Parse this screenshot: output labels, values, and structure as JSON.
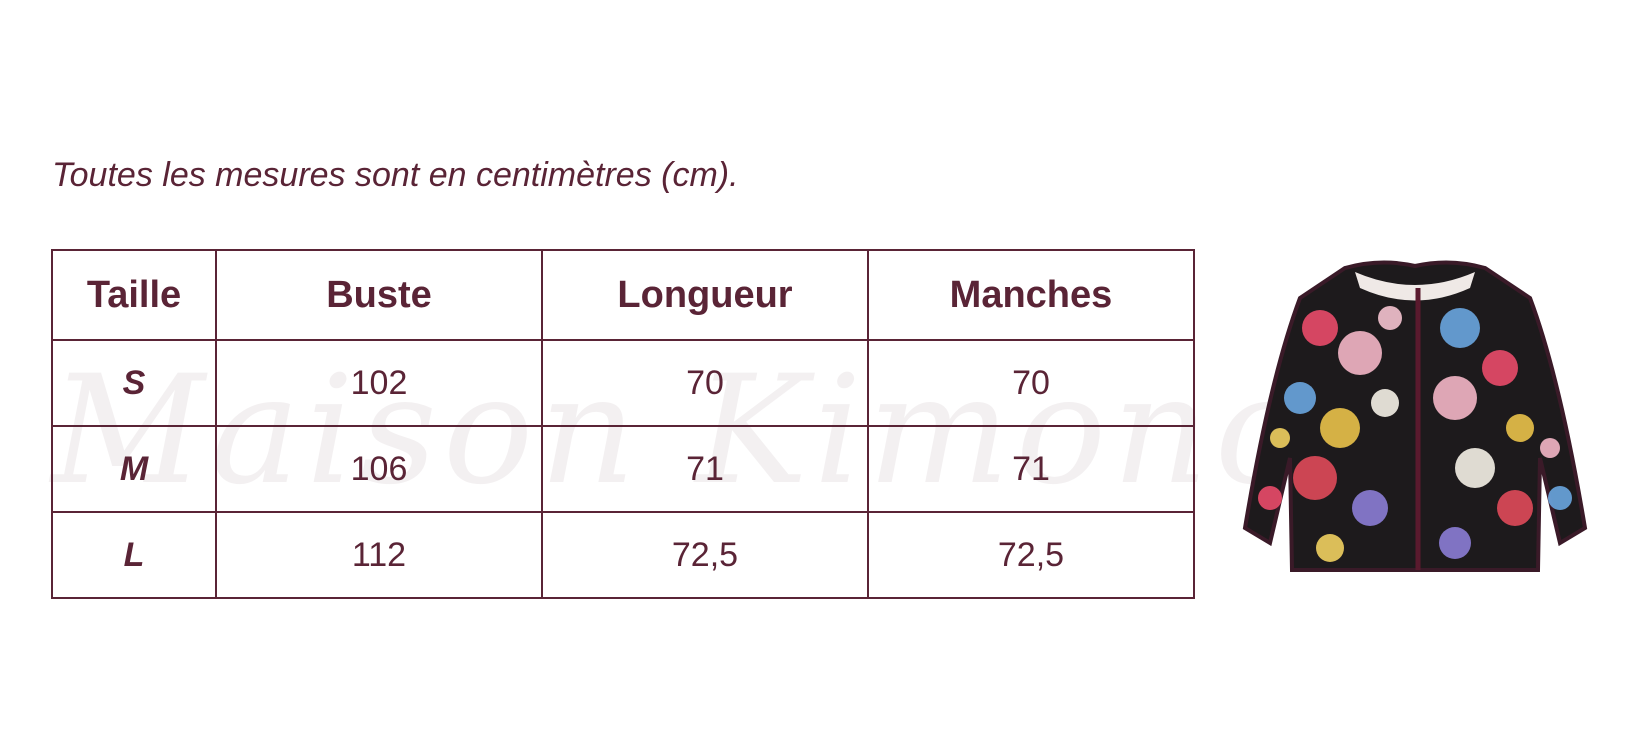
{
  "caption": "Toutes les mesures sont en centimètres (cm).",
  "watermark": "Maison Kimono",
  "table": {
    "header": [
      "Taille",
      "Buste",
      "Longueur",
      "Manches"
    ],
    "rows": [
      [
        "S",
        "102",
        "70",
        "70"
      ],
      [
        "M",
        "106",
        "71",
        "71"
      ],
      [
        "L",
        "112",
        "72,5",
        "72,5"
      ]
    ]
  }
}
